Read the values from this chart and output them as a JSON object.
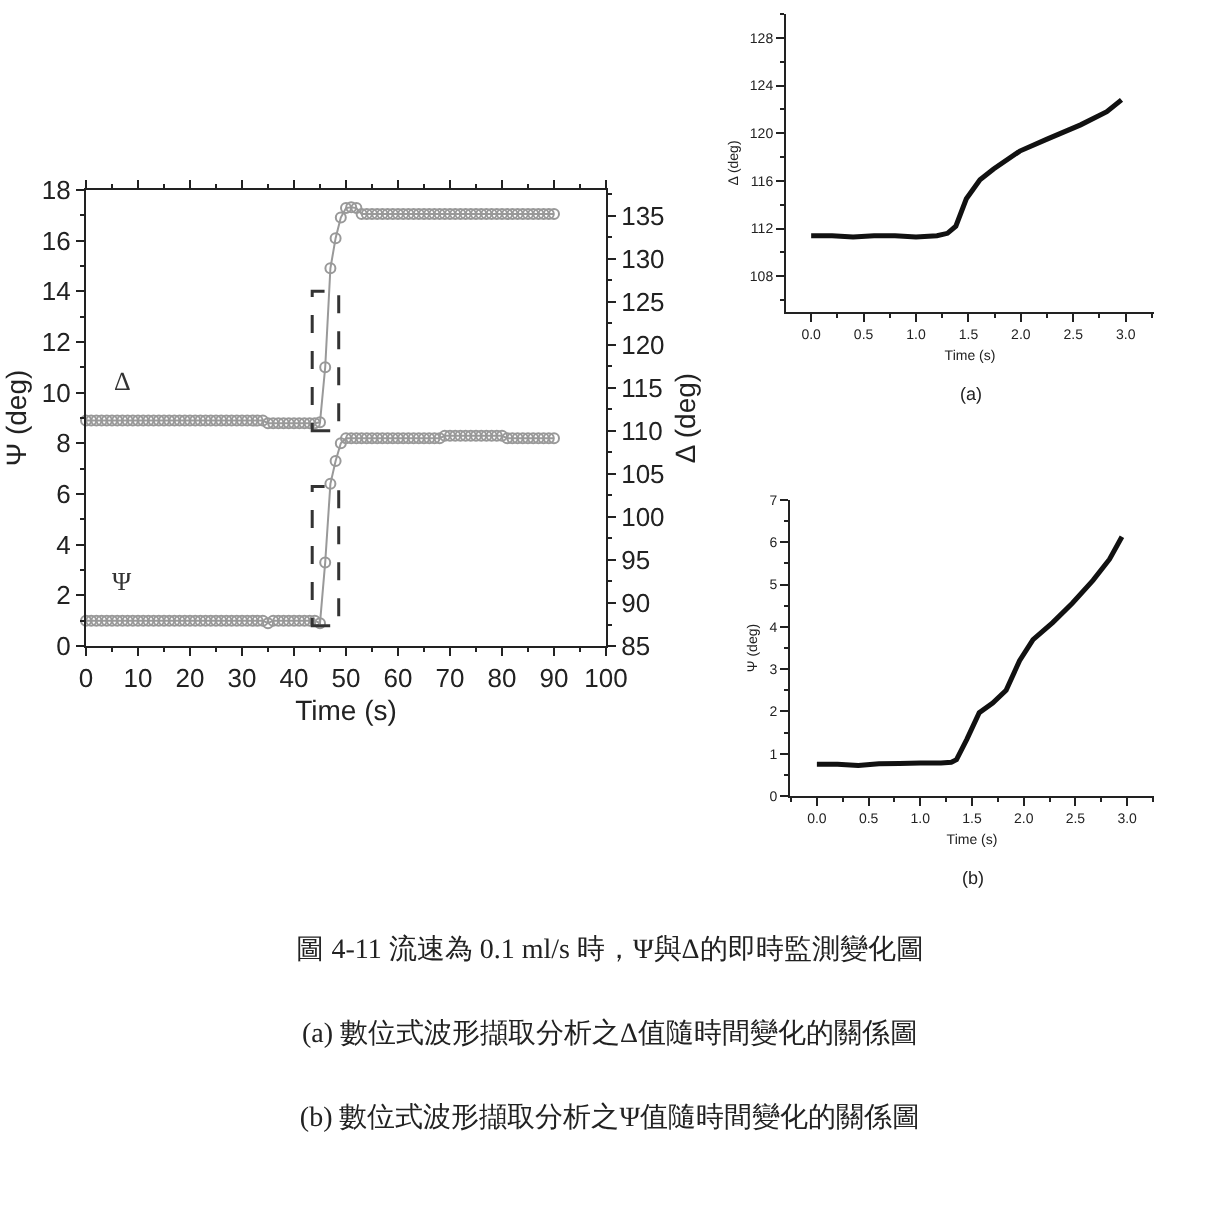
{
  "chart_data": [
    {
      "type": "line",
      "xlabel": "Time (s)",
      "ylabel": "Ψ (deg)",
      "y2label": "Δ (deg)",
      "marker": "circle",
      "x": [
        0,
        1,
        2,
        3,
        4,
        5,
        6,
        7,
        8,
        9,
        10,
        11,
        12,
        13,
        14,
        15,
        16,
        17,
        18,
        19,
        20,
        21,
        22,
        23,
        24,
        25,
        26,
        27,
        28,
        29,
        30,
        31,
        32,
        33,
        34,
        35,
        36,
        37,
        38,
        39,
        40,
        41,
        42,
        43,
        44,
        45,
        46,
        47,
        48,
        49,
        50,
        51,
        52,
        53,
        54,
        55,
        56,
        57,
        58,
        59,
        60,
        61,
        62,
        63,
        64,
        65,
        66,
        67,
        68,
        69,
        70,
        71,
        72,
        73,
        74,
        75,
        76,
        77,
        78,
        79,
        80,
        81,
        82,
        83,
        84,
        85,
        86,
        87,
        88,
        89,
        90
      ],
      "series": [
        {
          "name": "Δ",
          "axis": "y2",
          "color": "#999999",
          "values": [
            111.2,
            111.2,
            111.2,
            111.2,
            111.2,
            111.2,
            111.2,
            111.2,
            111.2,
            111.2,
            111.2,
            111.2,
            111.2,
            111.2,
            111.2,
            111.2,
            111.2,
            111.2,
            111.2,
            111.2,
            111.2,
            111.2,
            111.2,
            111.2,
            111.2,
            111.2,
            111.2,
            111.2,
            111.2,
            111.2,
            111.2,
            111.2,
            111.2,
            111.2,
            111.2,
            110.9,
            110.9,
            110.9,
            110.9,
            110.9,
            110.9,
            110.9,
            110.9,
            110.9,
            110.9,
            111.0,
            117.4,
            128.9,
            132.4,
            134.8,
            135.9,
            136.0,
            135.9,
            135.2,
            135.2,
            135.2,
            135.2,
            135.2,
            135.2,
            135.2,
            135.2,
            135.2,
            135.2,
            135.2,
            135.2,
            135.2,
            135.2,
            135.2,
            135.2,
            135.2,
            135.2,
            135.2,
            135.2,
            135.2,
            135.2,
            135.2,
            135.2,
            135.2,
            135.2,
            135.2,
            135.2,
            135.2,
            135.2,
            135.2,
            135.2,
            135.2,
            135.2,
            135.2,
            135.2,
            135.2,
            135.2
          ]
        },
        {
          "name": "Ψ",
          "color": "#999999",
          "values": [
            1.0,
            1.0,
            1.0,
            1.0,
            1.0,
            1.0,
            1.0,
            1.0,
            1.0,
            1.0,
            1.0,
            1.0,
            1.0,
            1.0,
            1.0,
            1.0,
            1.0,
            1.0,
            1.0,
            1.0,
            1.0,
            1.0,
            1.0,
            1.0,
            1.0,
            1.0,
            1.0,
            1.0,
            1.0,
            1.0,
            1.0,
            1.0,
            1.0,
            1.0,
            1.0,
            0.9,
            1.0,
            1.0,
            1.0,
            1.0,
            1.0,
            1.0,
            1.0,
            1.0,
            1.0,
            0.9,
            3.3,
            6.4,
            7.3,
            8.0,
            8.2,
            8.2,
            8.2,
            8.2,
            8.2,
            8.2,
            8.2,
            8.2,
            8.2,
            8.2,
            8.2,
            8.2,
            8.2,
            8.2,
            8.2,
            8.2,
            8.2,
            8.2,
            8.2,
            8.3,
            8.3,
            8.3,
            8.3,
            8.3,
            8.3,
            8.3,
            8.3,
            8.3,
            8.3,
            8.3,
            8.3,
            8.2,
            8.2,
            8.2,
            8.2,
            8.2,
            8.2,
            8.2,
            8.2,
            8.2,
            8.2
          ]
        }
      ],
      "xlim": [
        0,
        100
      ],
      "xticks": [
        0,
        10,
        20,
        30,
        40,
        50,
        60,
        70,
        80,
        90,
        100
      ],
      "ylim": [
        0,
        18
      ],
      "yticks": [
        0,
        2,
        4,
        6,
        8,
        10,
        12,
        14,
        16,
        18
      ],
      "y2lim": [
        85,
        138
      ],
      "y2ticks": [
        85,
        90,
        95,
        100,
        105,
        110,
        115,
        120,
        125,
        130,
        135
      ],
      "annotations": [
        "圖 4-11 流速為 0.1 ml/s 時，Ψ與Δ的即時監測變化圖",
        "(a) 數位式波形擷取分析之Δ值隨時間變化的關係圖",
        "(b) 數位式波形擷取分析之Ψ值隨時間變化的關係圖"
      ]
    },
    {
      "type": "line",
      "xlabel": "Time (s)",
      "ylabel": "Δ (deg)",
      "annotations": [
        "(a)"
      ],
      "x": [
        0,
        0.2,
        0.4,
        0.6,
        0.8,
        1.0,
        1.2,
        1.3,
        1.38,
        1.48,
        1.61,
        1.74,
        1.99,
        2.25,
        2.57,
        2.82,
        2.96
      ],
      "series": [
        {
          "color": "#111111",
          "values": [
            111.4,
            111.4,
            111.3,
            111.4,
            111.4,
            111.3,
            111.4,
            111.6,
            112.2,
            114.5,
            116.1,
            117.0,
            118.5,
            119.5,
            120.7,
            121.8,
            122.8
          ]
        }
      ],
      "xlim": [
        -0.24,
        3.27
      ],
      "xticks": [
        {
          "value": 0,
          "label": "0.0"
        },
        0.5,
        {
          "value": 1,
          "label": "1.0"
        },
        1.5,
        {
          "value": 2,
          "label": "2.0"
        },
        2.5,
        {
          "value": 3,
          "label": "3.0"
        }
      ],
      "ylim": [
        105,
        130
      ],
      "yticks": [
        108,
        112,
        116,
        120,
        124,
        128
      ]
    },
    {
      "type": "line",
      "xlabel": "Time (s)",
      "ylabel": "Ψ (deg)",
      "annotations": [
        "(b)"
      ],
      "x": [
        0,
        0.2,
        0.4,
        0.6,
        0.8,
        1.0,
        1.2,
        1.3,
        1.35,
        1.45,
        1.57,
        1.7,
        1.83,
        1.96,
        2.09,
        2.28,
        2.47,
        2.67,
        2.83,
        2.95
      ],
      "series": [
        {
          "color": "#111111",
          "values": [
            0.75,
            0.75,
            0.72,
            0.76,
            0.77,
            0.78,
            0.78,
            0.8,
            0.86,
            1.34,
            1.97,
            2.2,
            2.5,
            3.2,
            3.7,
            4.1,
            4.56,
            5.1,
            5.6,
            6.13
          ]
        }
      ],
      "xlim": [
        -0.26,
        3.26
      ],
      "xticks": [
        {
          "value": 0,
          "label": "0.0"
        },
        0.5,
        {
          "value": 1,
          "label": "1.0"
        },
        1.5,
        {
          "value": 2,
          "label": "2.0"
        },
        2.5,
        {
          "value": 3,
          "label": "3.0"
        }
      ],
      "ylim": [
        0,
        7
      ],
      "yticks": [
        0,
        1,
        2,
        3,
        4,
        5,
        6,
        7
      ]
    }
  ]
}
